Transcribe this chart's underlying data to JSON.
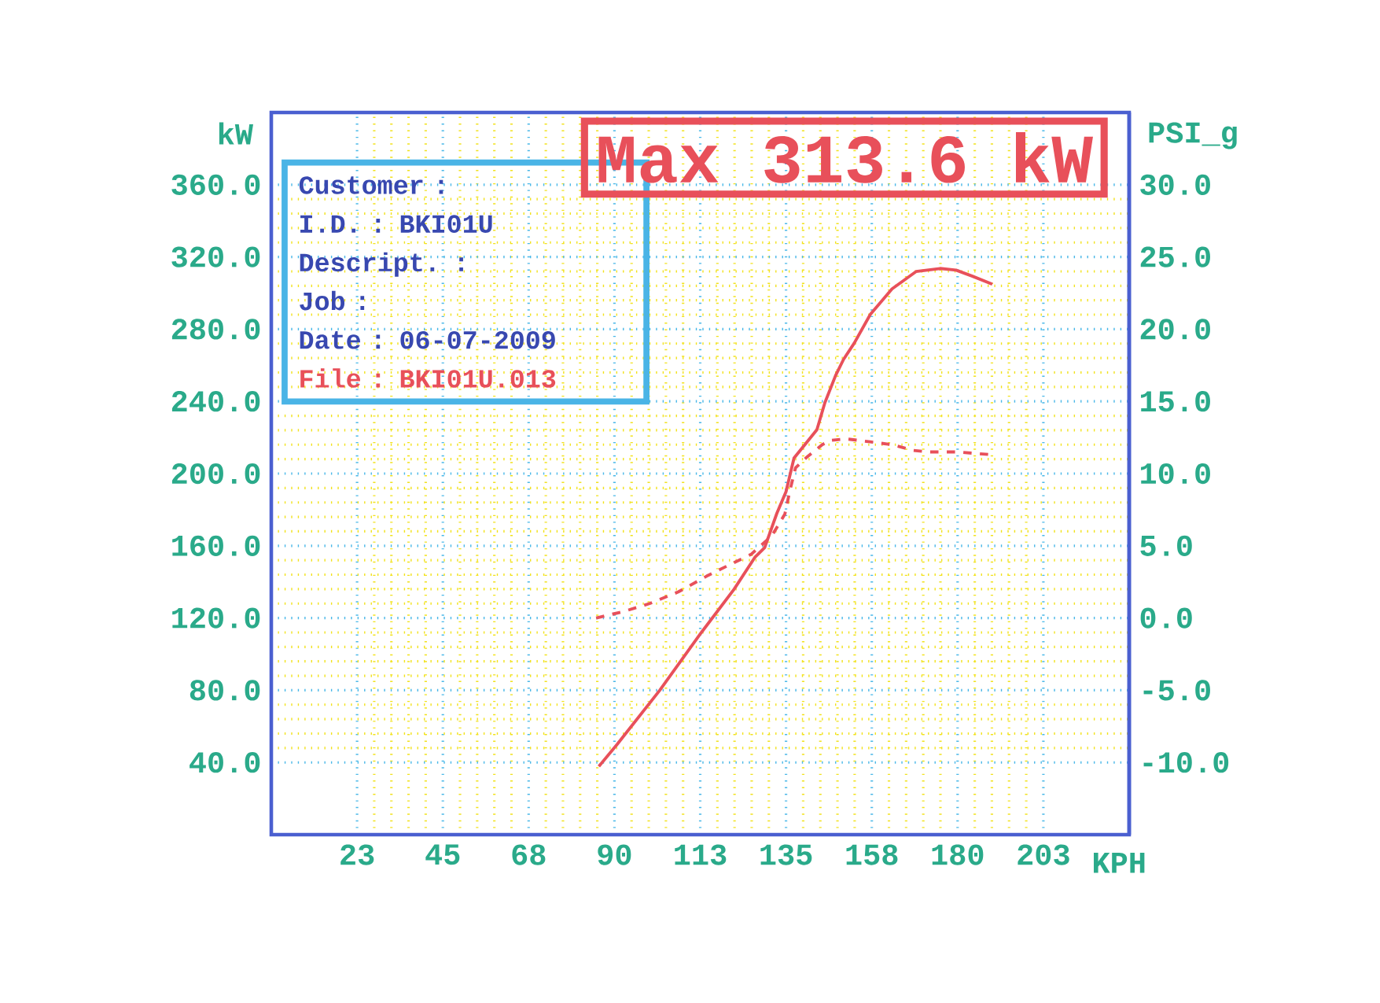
{
  "chart_data": {
    "type": "line",
    "xlabel": "KPH",
    "ylabel": "kW",
    "y2label": "PSI_g",
    "xlim": [
      0,
      225
    ],
    "xticks": [
      {
        "value": 22.5,
        "label": "23"
      },
      45,
      {
        "value": 67.5,
        "label": "68"
      },
      90,
      {
        "value": 112.5,
        "label": "113"
      },
      135,
      {
        "value": 157.5,
        "label": "158"
      },
      180,
      {
        "value": 202.5,
        "label": "203"
      }
    ],
    "ylim": [
      0,
      400
    ],
    "yticks": [
      {
        "value": 40,
        "label": "40.0"
      },
      {
        "value": 80,
        "label": "80.0"
      },
      {
        "value": 120,
        "label": "120.0"
      },
      {
        "value": 160,
        "label": "160.0"
      },
      {
        "value": 200,
        "label": "200.0"
      },
      {
        "value": 240,
        "label": "240.0"
      },
      {
        "value": 280,
        "label": "280.0"
      },
      {
        "value": 320,
        "label": "320.0"
      },
      {
        "value": 360,
        "label": "360.0"
      }
    ],
    "y2lim": [
      -15,
      35
    ],
    "y2ticks": [
      {
        "value": -10,
        "label": "-10.0"
      },
      {
        "value": -5,
        "label": "-5.0"
      },
      {
        "value": 0,
        "label": "0.0"
      },
      {
        "value": 5,
        "label": "5.0"
      },
      {
        "value": 10,
        "label": "10.0"
      },
      {
        "value": 15,
        "label": "15.0"
      },
      {
        "value": 20,
        "label": "20.0"
      },
      {
        "value": 25,
        "label": "25.0"
      },
      {
        "value": 30,
        "label": "30.0"
      }
    ],
    "grid": true,
    "line_style": "solid",
    "annotations": [
      "Customer :",
      "I.D. : BKI01U",
      "Descript. :",
      "Job :",
      "Date : 06-07-2009",
      "File : BKI01U.013",
      "Max 313.6 kW"
    ],
    "series": [
      {
        "color": "#e8505a",
        "x": [
          85.9,
          90.7,
          101.9,
          112.8,
          121.4,
          126.8,
          129.4,
          132.6,
          135,
          137.1,
          143.1,
          145.2,
          148,
          150.1,
          152.9,
          157.1,
          162.8,
          169.1,
          175.4,
          179.6,
          183.9,
          189.1
        ],
        "values": [
          37.8,
          50,
          80,
          112,
          136,
          153.5,
          159,
          178,
          190,
          208.6,
          224.3,
          239.3,
          254.3,
          263.3,
          272.3,
          288.1,
          302.3,
          311.9,
          313.6,
          312.7,
          309.3,
          304.9
        ]
      },
      {
        "color": "#e8505a",
        "axis": "y2",
        "line_style": "dashed",
        "x": [
          85.2,
          92.4,
          99.2,
          106.7,
          114.2,
          120.3,
          125.8,
          131.3,
          134.7,
          136,
          137.5,
          140.3,
          144.5,
          146.6,
          150.8,
          157.1,
          162.8,
          168.4,
          172.6,
          179.6,
          184.6,
          189.1
        ],
        "values": [
          0,
          0.45,
          1.0,
          1.8,
          2.9,
          3.7,
          4.4,
          5.7,
          7.2,
          8.8,
          10.4,
          11.1,
          12.0,
          12.3,
          12.4,
          12.2,
          12.0,
          11.6,
          11.5,
          11.5,
          11.4,
          11.3
        ]
      }
    ]
  }
}
